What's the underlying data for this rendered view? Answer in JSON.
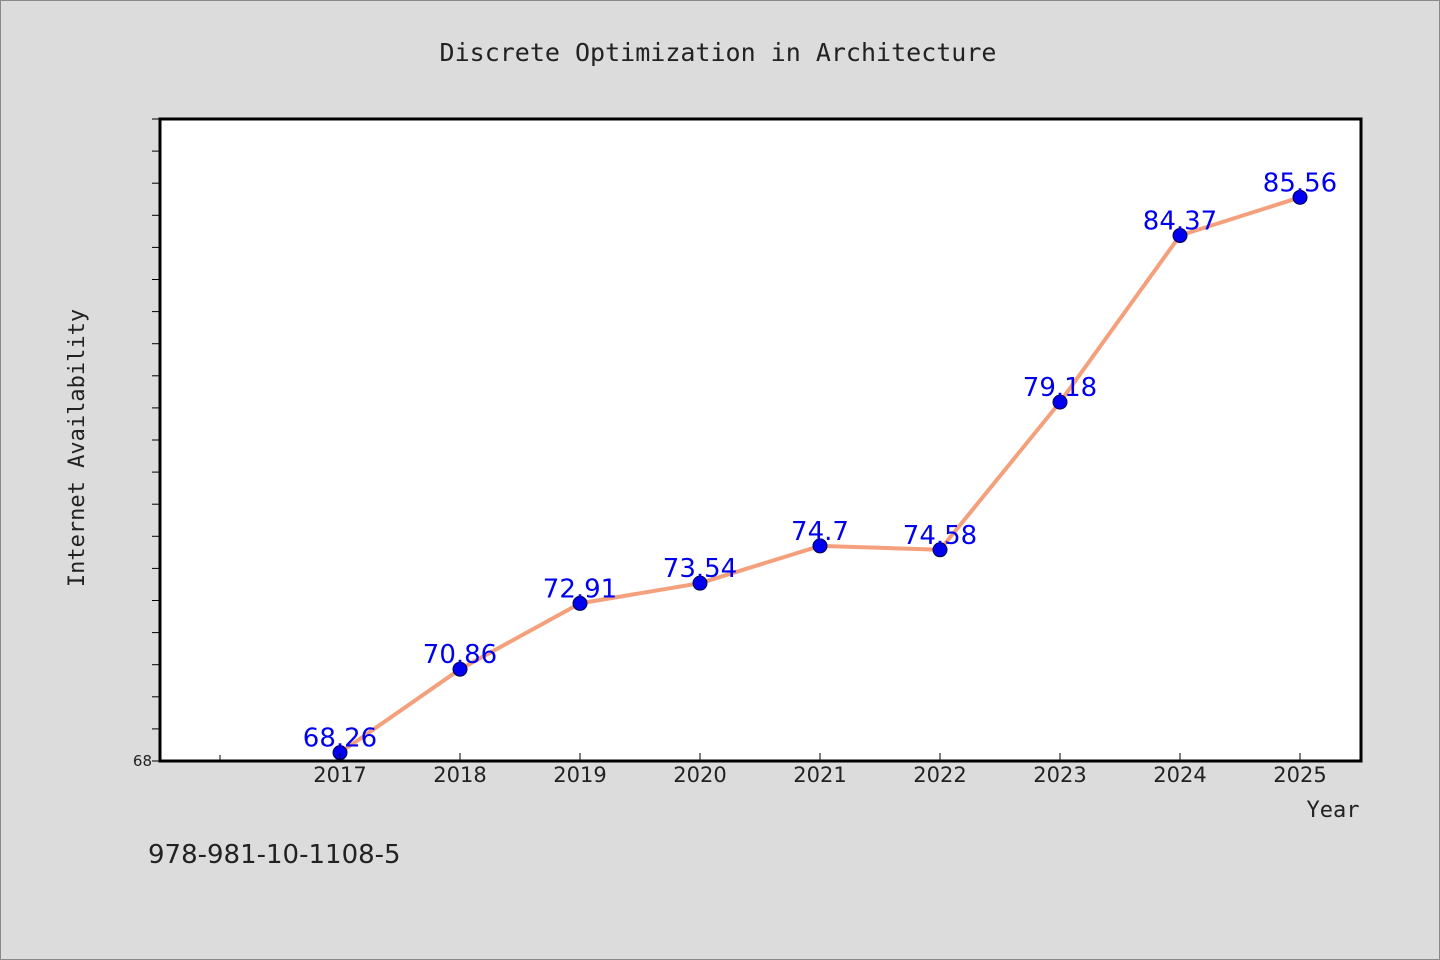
{
  "chart_data": {
    "type": "line",
    "title": "Discrete Optimization in Architecture",
    "xlabel": "Year",
    "ylabel": "Internet Availability",
    "categories": [
      "2017",
      "2018",
      "2019",
      "2020",
      "2021",
      "2022",
      "2023",
      "2024",
      "2025"
    ],
    "series": [
      {
        "values": [
          68.26,
          70.86,
          72.91,
          73.54,
          74.7,
          74.58,
          79.18,
          84.37,
          85.56
        ],
        "labels": [
          "68.26",
          "70.86",
          "72.91",
          "73.54",
          "74.7",
          "74.58",
          "79.18",
          "84.37",
          "85.56"
        ],
        "line_color": "#f4a07c",
        "marker_color": "#0000ee"
      }
    ],
    "ylim": [
      68,
      88
    ],
    "y_tick_labels": [
      "68"
    ],
    "grid": false,
    "legend": "none"
  },
  "footer": {
    "isbn": "978-981-10-1108-5"
  },
  "colors": {
    "background": "#dcdcdc",
    "plot_background": "#ffffff",
    "label_color": "#0000ee",
    "text_color": "#222222"
  }
}
